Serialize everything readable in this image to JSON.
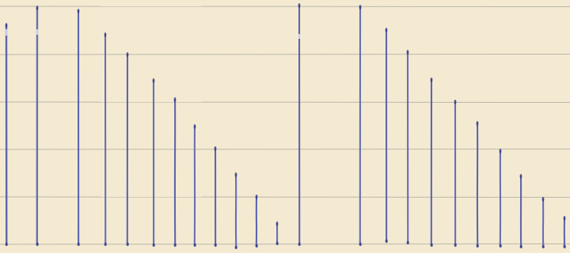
{
  "paper": {
    "background": "#f4ead2",
    "rule_color": "#a9a79b"
  },
  "ink": {
    "primary": "#4f58a6",
    "secondary": "#5962b0"
  },
  "ruling": {
    "line_count": 6
  },
  "strokes": {
    "count": 27
  }
}
